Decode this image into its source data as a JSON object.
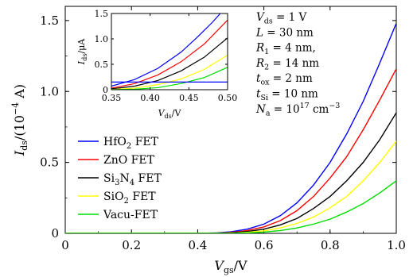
{
  "chart_data": [
    {
      "type": "line",
      "xlabel": {
        "main": "V",
        "sub": "gs",
        "tail": "/V"
      },
      "ylabel": {
        "main": "I",
        "sub": "ds",
        "tail": "/(10",
        "sup": "−4",
        "end": " A)"
      },
      "xlim": [
        0,
        1.0
      ],
      "ylim": [
        0,
        1.6
      ],
      "x_ticks": [
        0,
        0.2,
        0.4,
        0.6,
        0.8,
        1.0
      ],
      "x_tick_labels": [
        "0",
        "0.2",
        "0.4",
        "0.6",
        "0.8",
        "1.0"
      ],
      "y_ticks": [
        0,
        0.5,
        1.0,
        1.5
      ],
      "y_tick_labels": [
        "0",
        "0.5",
        "1.0",
        "1.5"
      ],
      "legend_position": "center-left",
      "series": [
        {
          "name": "HfO2 FET",
          "color": "#0000ff",
          "x": [
            0,
            0.35,
            0.42,
            0.46,
            0.5,
            0.55,
            0.6,
            0.65,
            0.7,
            0.75,
            0.8,
            0.85,
            0.9,
            0.95,
            1.0
          ],
          "y": [
            0,
            0,
            0.001,
            0.004,
            0.011,
            0.03,
            0.065,
            0.125,
            0.215,
            0.34,
            0.5,
            0.7,
            0.93,
            1.2,
            1.48
          ]
        },
        {
          "name": "ZnO FET",
          "color": "#ff0000",
          "x": [
            0,
            0.37,
            0.44,
            0.48,
            0.52,
            0.55,
            0.6,
            0.65,
            0.7,
            0.75,
            0.8,
            0.85,
            0.9,
            0.95,
            1.0
          ],
          "y": [
            0,
            0,
            0.001,
            0.004,
            0.011,
            0.02,
            0.045,
            0.09,
            0.16,
            0.26,
            0.39,
            0.54,
            0.73,
            0.94,
            1.16
          ]
        },
        {
          "name": "Si3N4 FET",
          "color": "#000000",
          "x": [
            0,
            0.39,
            0.46,
            0.5,
            0.55,
            0.6,
            0.65,
            0.7,
            0.75,
            0.8,
            0.85,
            0.9,
            0.95,
            1.0
          ],
          "y": [
            0,
            0,
            0.001,
            0.004,
            0.013,
            0.03,
            0.06,
            0.105,
            0.175,
            0.26,
            0.37,
            0.5,
            0.66,
            0.85
          ]
        },
        {
          "name": "SiO2 FET",
          "color": "#ffff00",
          "x": [
            0,
            0.42,
            0.48,
            0.52,
            0.55,
            0.6,
            0.65,
            0.7,
            0.75,
            0.8,
            0.85,
            0.9,
            0.95,
            1.0
          ],
          "y": [
            0,
            0,
            0.001,
            0.003,
            0.007,
            0.018,
            0.038,
            0.07,
            0.115,
            0.18,
            0.26,
            0.37,
            0.5,
            0.65
          ]
        },
        {
          "name": "Vacu-FET",
          "color": "#00dd00",
          "x": [
            0,
            0.44,
            0.5,
            0.55,
            0.6,
            0.65,
            0.7,
            0.75,
            0.8,
            0.85,
            0.9,
            0.95,
            1.0
          ],
          "y": [
            0,
            0,
            0.001,
            0.003,
            0.009,
            0.02,
            0.038,
            0.065,
            0.1,
            0.15,
            0.21,
            0.285,
            0.37
          ]
        }
      ],
      "legend_labels": [
        {
          "main": "HfO",
          "sub": "2",
          "tail": " FET"
        },
        {
          "main": "ZnO FET",
          "sub": "",
          "tail": ""
        },
        {
          "main": "Si",
          "sub": "3",
          "mid": "N",
          "sub2": "4",
          "tail": " FET"
        },
        {
          "main": "SiO",
          "sub": "2",
          "tail": " FET"
        },
        {
          "main": "Vacu-FET",
          "sub": "",
          "tail": ""
        }
      ],
      "parameters": [
        {
          "sym": "V",
          "sub": "ds",
          "rest": " = 1 V"
        },
        {
          "sym": "L",
          "sub": "",
          "rest": " = 30 nm"
        },
        {
          "sym": "R",
          "sub": "1",
          "rest": " = 4 nm,"
        },
        {
          "sym": "R",
          "sub": "2",
          "rest": " = 14 nm"
        },
        {
          "sym": "t",
          "sub": "ox",
          "rest": " = 2 nm"
        },
        {
          "sym": "t",
          "sub": "Si",
          "rest": " = 10 nm"
        },
        {
          "sym": "N",
          "sub": "a",
          "rest": " = 10",
          "sup": "17",
          "end": " cm",
          "sup2": "−3"
        }
      ]
    },
    {
      "type": "line",
      "inset": true,
      "xlabel": {
        "main": "V",
        "sub": "ds",
        "tail": "/V"
      },
      "ylabel": {
        "main": "I",
        "sub": "ds",
        "tail": "/μA"
      },
      "xlim": [
        0.35,
        0.5
      ],
      "ylim": [
        0,
        1.5
      ],
      "x_ticks": [
        0.35,
        0.4,
        0.45,
        0.5
      ],
      "x_tick_labels": [
        "0.35",
        "0.40",
        "0.45",
        "0.50"
      ],
      "y_ticks": [
        0,
        0.5,
        1.0,
        1.5
      ],
      "y_tick_labels": [
        "0",
        "0.5",
        "1.0",
        "1.5"
      ],
      "series": [
        {
          "name": "HfO2 FET",
          "color": "#0000ff",
          "x": [
            0.35,
            0.38,
            0.41,
            0.44,
            0.46,
            0.48,
            0.5
          ],
          "y": [
            0.07,
            0.2,
            0.42,
            0.74,
            1.02,
            1.32,
            1.66
          ]
        },
        {
          "name": "ZnO FET",
          "color": "#ff0000",
          "x": [
            0.35,
            0.38,
            0.41,
            0.44,
            0.47,
            0.5
          ],
          "y": [
            0.03,
            0.12,
            0.29,
            0.55,
            0.9,
            1.37
          ]
        },
        {
          "name": "Si3N4 FET",
          "color": "#000000",
          "x": [
            0.35,
            0.38,
            0.41,
            0.44,
            0.47,
            0.5
          ],
          "y": [
            0.015,
            0.07,
            0.18,
            0.37,
            0.64,
            1.02
          ]
        },
        {
          "name": "SiO2 FET",
          "color": "#ffff00",
          "x": [
            0.35,
            0.38,
            0.41,
            0.44,
            0.47,
            0.5
          ],
          "y": [
            0.005,
            0.03,
            0.1,
            0.21,
            0.4,
            0.68
          ]
        },
        {
          "name": "Vacu-FET",
          "color": "#00dd00",
          "x": [
            0.35,
            0.38,
            0.41,
            0.44,
            0.47,
            0.5
          ],
          "y": [
            0.0,
            0.01,
            0.04,
            0.12,
            0.24,
            0.44
          ]
        },
        {
          "name": "",
          "color": "#0000ff",
          "x": [
            0.35,
            0.5
          ],
          "y": [
            0.15,
            0.15
          ]
        }
      ]
    }
  ]
}
